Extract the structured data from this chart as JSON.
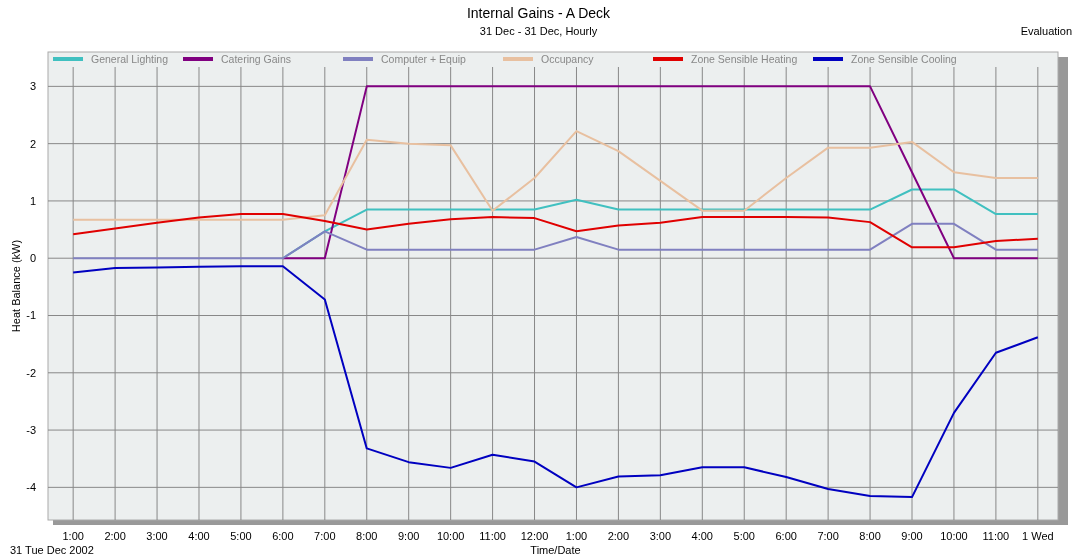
{
  "chart_data": {
    "type": "line",
    "title": "Internal Gains - A Deck",
    "subtitle": "31 Dec - 31 Dec, Hourly",
    "xlabel": "Time/Date",
    "ylabel": "Heat Balance (kW)",
    "annotations": [
      "Evaluation",
      "31 Tue  Dec 2002"
    ],
    "categories": [
      "1:00",
      "2:00",
      "3:00",
      "4:00",
      "5:00",
      "6:00",
      "7:00",
      "8:00",
      "9:00",
      "10:00",
      "11:00",
      "12:00",
      "1:00",
      "2:00",
      "3:00",
      "4:00",
      "5:00",
      "6:00",
      "7:00",
      "8:00",
      "9:00",
      "10:00",
      "11:00",
      "1 Wed"
    ],
    "series": [
      {
        "name": "General Lighting",
        "color": "#40c0c0",
        "values": [
          null,
          null,
          null,
          null,
          null,
          0,
          0.47,
          0.85,
          0.85,
          0.85,
          0.85,
          0.85,
          1.02,
          0.85,
          0.85,
          0.85,
          0.85,
          0.85,
          0.85,
          0.85,
          1.2,
          1.2,
          0.77,
          0.77
        ]
      },
      {
        "name": "Catering Gains",
        "color": "#800080",
        "values": [
          null,
          null,
          null,
          null,
          null,
          0,
          0,
          3,
          3,
          3,
          3,
          3,
          3,
          3,
          3,
          3,
          3,
          3,
          3,
          3,
          1.5,
          0,
          0,
          0
        ]
      },
      {
        "name": "Computer + Equip",
        "color": "#8080c0",
        "values": [
          0,
          0,
          0,
          0,
          0,
          0,
          0.47,
          0.15,
          0.15,
          0.15,
          0.15,
          0.15,
          0.37,
          0.15,
          0.15,
          0.15,
          0.15,
          0.15,
          0.15,
          0.15,
          0.6,
          0.6,
          0.15,
          0.15
        ]
      },
      {
        "name": "Occupancy",
        "color": "#e8c0a0",
        "values": [
          0.67,
          0.67,
          0.67,
          0.67,
          0.67,
          0.67,
          0.75,
          2.07,
          2.0,
          1.97,
          0.83,
          1.4,
          2.22,
          1.87,
          1.35,
          0.83,
          0.83,
          1.4,
          1.93,
          1.93,
          2.03,
          1.5,
          1.4,
          1.4
        ]
      },
      {
        "name": "Zone Sensible Heating",
        "color": "#e00000",
        "values": [
          0.42,
          0.52,
          0.62,
          0.71,
          0.77,
          0.77,
          0.65,
          0.5,
          0.6,
          0.68,
          0.72,
          0.7,
          0.47,
          0.57,
          0.62,
          0.72,
          0.72,
          0.72,
          0.71,
          0.63,
          0.19,
          0.19,
          0.3,
          0.34
        ]
      },
      {
        "name": "Zone Sensible Cooling",
        "color": "#0000c0",
        "values": [
          -0.25,
          -0.17,
          -0.16,
          -0.15,
          -0.14,
          -0.14,
          -0.72,
          -3.32,
          -3.56,
          -3.66,
          -3.43,
          -3.55,
          -4.0,
          -3.81,
          -3.79,
          -3.65,
          -3.65,
          -3.82,
          -4.03,
          -4.15,
          -4.17,
          -2.7,
          -1.65,
          -1.38
        ]
      }
    ],
    "ylim": [
      -4.57,
      3.6
    ],
    "yticks": [
      -4,
      -3,
      -2,
      -1,
      0,
      1,
      2,
      3
    ],
    "grid": true,
    "legend": "top",
    "marker": "none",
    "line_style": "solid"
  }
}
